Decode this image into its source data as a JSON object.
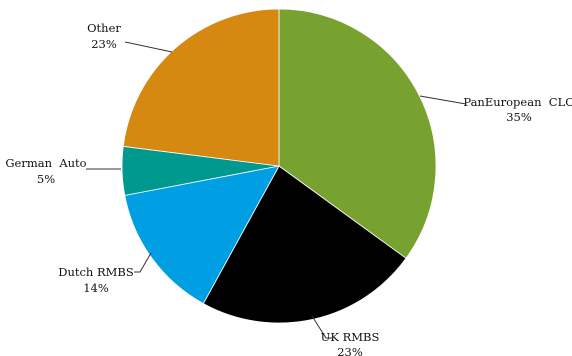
{
  "chart_data": {
    "type": "pie",
    "slices": [
      {
        "name": "PanEuropean  CLO",
        "pct_label": "35%",
        "value": 35,
        "color": "#78a22f"
      },
      {
        "name": "UK RMBS",
        "pct_label": "23%",
        "value": 23,
        "color": "#000000"
      },
      {
        "name": "Dutch RMBS",
        "pct_label": "14%",
        "value": 14,
        "color": "#009fe3"
      },
      {
        "name": "German  Auto",
        "pct_label": "5%",
        "value": 5,
        "color": "#00998f"
      },
      {
        "name": "Other",
        "pct_label": "23%",
        "value": 23,
        "color": "#d68910"
      }
    ],
    "start_angle": "12 o'clock",
    "direction": "clockwise",
    "legend": "none"
  }
}
